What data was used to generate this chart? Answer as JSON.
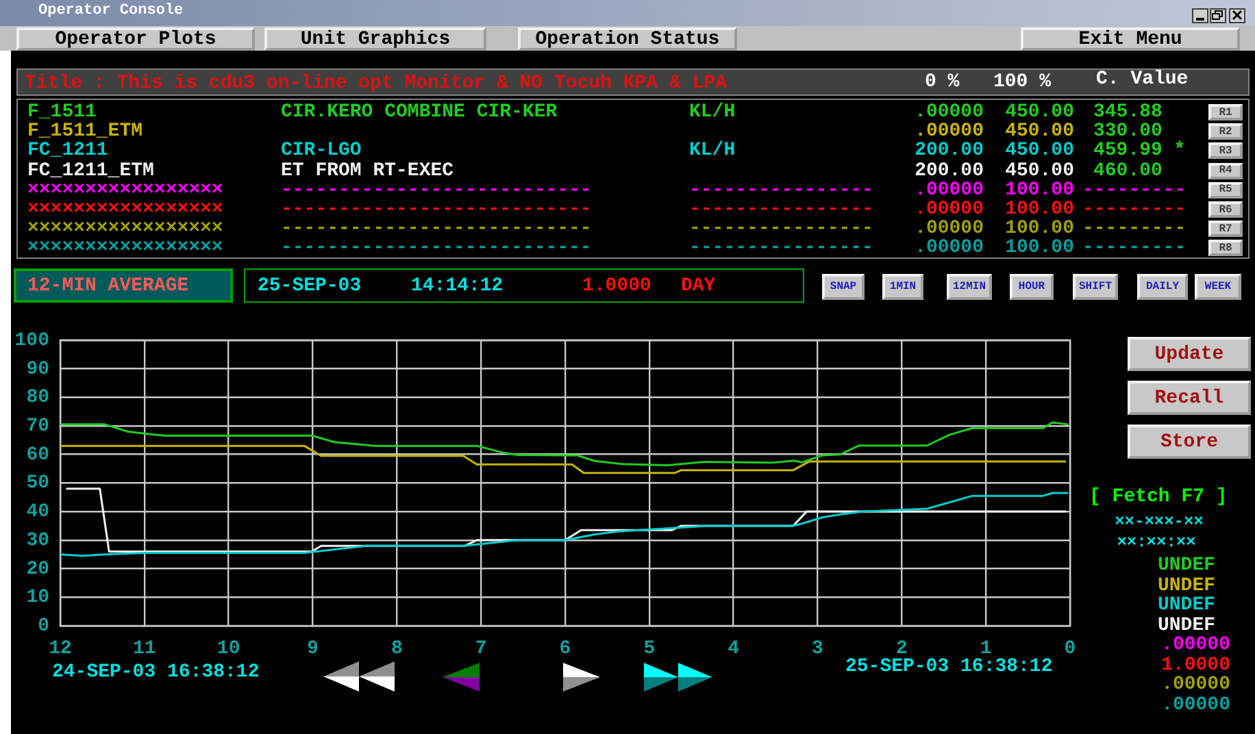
{
  "chart_data": {
    "type": "line",
    "title": "Title : This is cdu3 on-line opt Monitor & NO Tocuh KPA & LPA",
    "xlim": [
      12,
      0
    ],
    "xticks": [
      12,
      11,
      10,
      9,
      8,
      7,
      6,
      5,
      4,
      3,
      2,
      1,
      0
    ],
    "ylim": [
      0,
      100
    ],
    "yticks": [
      0,
      10,
      20,
      30,
      40,
      50,
      60,
      70,
      80,
      90,
      100
    ],
    "grid": true,
    "marker": "none",
    "line_style": "solid",
    "series": [
      {
        "name": "F_1511",
        "color": "#22cc22",
        "x": [
          12,
          11.47,
          11.2,
          11.0,
          10.76,
          9.01,
          8.74,
          8.52,
          8.25,
          7.05,
          6.72,
          6.56,
          6.0,
          5.86,
          5.65,
          5.32,
          4.78,
          4.35,
          3.54,
          3.27,
          3.19,
          2.94,
          2.73,
          2.51,
          1.7,
          1.43,
          1.16,
          0.32,
          0.21,
          0.02
        ],
        "values": [
          70.5,
          70.5,
          68,
          67.3,
          66.6,
          66.6,
          64.3,
          63.7,
          63,
          63,
          60.5,
          59.8,
          59.7,
          59.7,
          57.7,
          56.6,
          56.2,
          57.4,
          57.1,
          57.8,
          57.2,
          59.7,
          60,
          63.1,
          63.1,
          66.9,
          69.2,
          69.2,
          71.2,
          70.5
        ]
      },
      {
        "name": "F_1511_ETM",
        "color": "#c8b400",
        "x": [
          12,
          9.1,
          8.9,
          7.21,
          7.05,
          5.92,
          5.78,
          4.7,
          4.62,
          3.29,
          3.1,
          0.05
        ],
        "values": [
          63,
          63,
          59.5,
          59.5,
          56.5,
          56.5,
          53.5,
          53.5,
          54.5,
          54.5,
          57.5,
          57.5
        ]
      },
      {
        "name": "FC_1211",
        "color": "#00cccc",
        "x": [
          12,
          11.74,
          11.47,
          10.98,
          9.1,
          8.36,
          7.21,
          6.56,
          6.0,
          5.65,
          5.38,
          4.3,
          3.29,
          3.16,
          2.94,
          2.73,
          2.46,
          1.7,
          1.16,
          0.32,
          0.21,
          0.02
        ],
        "values": [
          25,
          24.5,
          25,
          25.5,
          25.5,
          28,
          28,
          30,
          30,
          32,
          33,
          35,
          35,
          36,
          38,
          39,
          40,
          41,
          45.5,
          45.5,
          46.5,
          46.5
        ]
      },
      {
        "name": "FC_1211_ETM",
        "color": "#f0f0f0",
        "x": [
          11.93,
          11.53,
          11.42,
          9.01,
          8.9,
          7.19,
          7.05,
          6.0,
          5.81,
          4.73,
          4.62,
          3.29,
          3.13,
          0.05
        ],
        "values": [
          48,
          48,
          26,
          26,
          28,
          28,
          30,
          30,
          33.5,
          33.5,
          35,
          35,
          40,
          40
        ]
      }
    ],
    "annotations": [
      "0 %",
      "100 %",
      "C. Value",
      "CIR.KERO COMBINE CIR-KER",
      "KL/H",
      ".00000",
      "450.00",
      "345.88",
      "R1",
      ".00000",
      "450.00",
      "330.00",
      "R2",
      "CIR-LGO",
      "KL/H",
      "200.00",
      "450.00",
      "459.99 *",
      "R3",
      "ET FROM RT-EXEC",
      "200.00",
      "450.00",
      "460.00",
      "R4",
      "×××××××××××××××××",
      "---------------------------",
      "----------------",
      ".00000",
      "100.00",
      "---------",
      "R5",
      "×××××××××××××××××",
      "---------------------------",
      "----------------",
      ".00000",
      "100.00",
      "---------",
      "R6",
      "×××××××××××××××××",
      "---------------------------",
      "----------------",
      ".00000",
      "100.00",
      "---------",
      "R7",
      "×××××××××××××××××",
      "---------------------------",
      "----------------",
      ".00000",
      "100.00",
      "---------",
      "R8",
      "12-MIN AVERAGE",
      "25-SEP-03",
      "14:14:12",
      "1.0000",
      "DAY",
      "SNAP",
      "1MIN",
      "12MIN",
      "HOUR",
      "SHIFT",
      "DAILY",
      "WEEK",
      "Update",
      "Recall",
      "Store",
      "[ Fetch F7 ]",
      "××-×××-××",
      "××:××:××",
      "UNDEF",
      "UNDEF",
      "UNDEF",
      "UNDEF",
      ".00000",
      "1.0000",
      ".00000",
      ".00000",
      "24-SEP-03 16:38:12",
      "25-SEP-03 16:38:12",
      "Operator Console",
      "Operator Plots",
      "Unit Graphics",
      "Operation Status",
      "Exit Menu"
    ]
  }
}
